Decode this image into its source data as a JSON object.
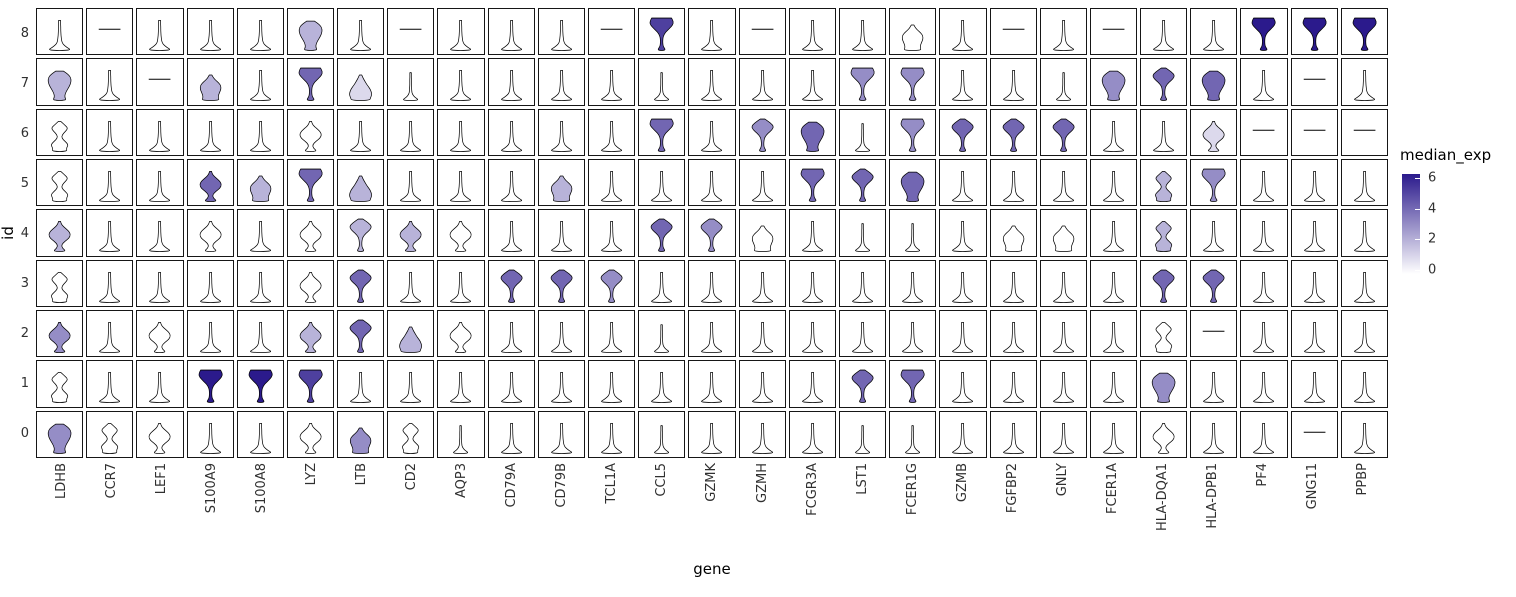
{
  "chart_data": {
    "type": "violin",
    "title": "",
    "xlabel": "gene",
    "ylabel": "id",
    "legend": {
      "title": "median_exp",
      "min": 0,
      "max": 6,
      "ticks": [
        6,
        4,
        2,
        0
      ],
      "low_color": "#FFFFFF",
      "high_color": "#2B1A8C"
    },
    "genes": [
      "LDHB",
      "CCR7",
      "LEF1",
      "S100A9",
      "S100A8",
      "LYZ",
      "LTB",
      "CD2",
      "AQP3",
      "CD79A",
      "CD79B",
      "TCL1A",
      "CCL5",
      "GZMK",
      "GZMH",
      "FCGR3A",
      "LST1",
      "FCER1G",
      "GZMB",
      "FGFBP2",
      "GNLY",
      "FCER1A",
      "HLA-DQA1",
      "HLA-DPB1",
      "PF4",
      "GNG11",
      "PPBP"
    ],
    "ids": [
      8,
      7,
      6,
      5,
      4,
      3,
      2,
      1,
      0
    ],
    "cell_format": "each cell is [violin_shape, median_exp]",
    "rows": [
      {
        "id": 8,
        "cells": [
          [
            "spike",
            0
          ],
          [
            "flat",
            0
          ],
          [
            "spike",
            0
          ],
          [
            "spike",
            0
          ],
          [
            "spike",
            0
          ],
          [
            "blob",
            2
          ],
          [
            "spike",
            0
          ],
          [
            "flat",
            0
          ],
          [
            "spike",
            0
          ],
          [
            "spike",
            0
          ],
          [
            "spike",
            0
          ],
          [
            "flat",
            0
          ],
          [
            "fan",
            5
          ],
          [
            "spike",
            0
          ],
          [
            "flat",
            0
          ],
          [
            "spike",
            0
          ],
          [
            "spike",
            0
          ],
          [
            "urn",
            0
          ],
          [
            "spike",
            0
          ],
          [
            "flat",
            0
          ],
          [
            "spike",
            0
          ],
          [
            "flat",
            0
          ],
          [
            "spike",
            0
          ],
          [
            "spike",
            0
          ],
          [
            "fan",
            6
          ],
          [
            "fan",
            6
          ],
          [
            "fan",
            6
          ]
        ]
      },
      {
        "id": 7,
        "cells": [
          [
            "blob",
            2
          ],
          [
            "spike",
            0
          ],
          [
            "flat",
            0
          ],
          [
            "urn",
            2
          ],
          [
            "spike",
            0
          ],
          [
            "fan",
            4
          ],
          [
            "tri",
            1
          ],
          [
            "thin",
            0
          ],
          [
            "spike",
            0
          ],
          [
            "spike",
            0
          ],
          [
            "spike",
            0
          ],
          [
            "spike",
            0
          ],
          [
            "thin",
            0
          ],
          [
            "spike",
            0
          ],
          [
            "spike",
            0
          ],
          [
            "spike",
            0
          ],
          [
            "fan",
            3
          ],
          [
            "fan",
            3
          ],
          [
            "spike",
            0
          ],
          [
            "spike",
            0
          ],
          [
            "thin",
            0
          ],
          [
            "blob",
            3
          ],
          [
            "spindle",
            4
          ],
          [
            "blob",
            4
          ],
          [
            "spike",
            0
          ],
          [
            "flat",
            0
          ],
          [
            "spike",
            0
          ]
        ]
      },
      {
        "id": 6,
        "cells": [
          [
            "hourglass",
            0
          ],
          [
            "spike",
            0
          ],
          [
            "spike",
            0
          ],
          [
            "spike",
            0
          ],
          [
            "spike",
            0
          ],
          [
            "diamond",
            0
          ],
          [
            "spike",
            0
          ],
          [
            "spike",
            0
          ],
          [
            "spike",
            0
          ],
          [
            "spike",
            0
          ],
          [
            "spike",
            0
          ],
          [
            "spike",
            0
          ],
          [
            "fan",
            4
          ],
          [
            "spike",
            0
          ],
          [
            "spindle",
            3
          ],
          [
            "blob",
            4
          ],
          [
            "thin",
            0
          ],
          [
            "fan",
            3
          ],
          [
            "spindle",
            4
          ],
          [
            "spindle",
            4
          ],
          [
            "spindle",
            4
          ],
          [
            "spike",
            0
          ],
          [
            "spike",
            0
          ],
          [
            "diamond",
            1
          ],
          [
            "flat",
            0
          ],
          [
            "flat",
            0
          ],
          [
            "flat",
            0
          ]
        ]
      },
      {
        "id": 5,
        "cells": [
          [
            "hourglass",
            0
          ],
          [
            "spike",
            0
          ],
          [
            "spike",
            0
          ],
          [
            "diamond",
            4
          ],
          [
            "urn",
            2
          ],
          [
            "fan",
            4
          ],
          [
            "tri",
            2
          ],
          [
            "spike",
            0
          ],
          [
            "spike",
            0
          ],
          [
            "spike",
            0
          ],
          [
            "urn",
            2
          ],
          [
            "spike",
            0
          ],
          [
            "spike",
            0
          ],
          [
            "spike",
            0
          ],
          [
            "spike",
            0
          ],
          [
            "fan",
            4
          ],
          [
            "spindle",
            4
          ],
          [
            "blob",
            4
          ],
          [
            "spike",
            0
          ],
          [
            "spike",
            0
          ],
          [
            "spike",
            0
          ],
          [
            "spike",
            0
          ],
          [
            "hourglass",
            2
          ],
          [
            "fan",
            3
          ],
          [
            "spike",
            0
          ],
          [
            "spike",
            0
          ],
          [
            "spike",
            0
          ]
        ]
      },
      {
        "id": 4,
        "cells": [
          [
            "diamond",
            2
          ],
          [
            "spike",
            0
          ],
          [
            "spike",
            0
          ],
          [
            "diamond",
            0
          ],
          [
            "spike",
            0
          ],
          [
            "diamond",
            0
          ],
          [
            "spindle",
            2
          ],
          [
            "diamond",
            2
          ],
          [
            "diamond",
            0
          ],
          [
            "spike",
            0
          ],
          [
            "spike",
            0
          ],
          [
            "spike",
            0
          ],
          [
            "spindle",
            4
          ],
          [
            "spindle",
            3
          ],
          [
            "urn",
            0
          ],
          [
            "spike",
            0
          ],
          [
            "thin",
            0
          ],
          [
            "thin",
            0
          ],
          [
            "spike",
            0
          ],
          [
            "urn",
            0
          ],
          [
            "urn",
            0
          ],
          [
            "spike",
            0
          ],
          [
            "hourglass",
            2
          ],
          [
            "spike",
            0
          ],
          [
            "spike",
            0
          ],
          [
            "spike",
            0
          ],
          [
            "spike",
            0
          ]
        ]
      },
      {
        "id": 3,
        "cells": [
          [
            "hourglass",
            0
          ],
          [
            "spike",
            0
          ],
          [
            "spike",
            0
          ],
          [
            "spike",
            0
          ],
          [
            "spike",
            0
          ],
          [
            "diamond",
            0
          ],
          [
            "spindle",
            4
          ],
          [
            "spike",
            0
          ],
          [
            "spike",
            0
          ],
          [
            "spindle",
            4
          ],
          [
            "spindle",
            4
          ],
          [
            "spindle",
            3
          ],
          [
            "spike",
            0
          ],
          [
            "spike",
            0
          ],
          [
            "spike",
            0
          ],
          [
            "spike",
            0
          ],
          [
            "spike",
            0
          ],
          [
            "spike",
            0
          ],
          [
            "spike",
            0
          ],
          [
            "spike",
            0
          ],
          [
            "spike",
            0
          ],
          [
            "spike",
            0
          ],
          [
            "spindle",
            4
          ],
          [
            "spindle",
            4
          ],
          [
            "spike",
            0
          ],
          [
            "spike",
            0
          ],
          [
            "spike",
            0
          ]
        ]
      },
      {
        "id": 2,
        "cells": [
          [
            "diamond",
            3
          ],
          [
            "spike",
            0
          ],
          [
            "diamond",
            0
          ],
          [
            "spike",
            0
          ],
          [
            "spike",
            0
          ],
          [
            "diamond",
            2
          ],
          [
            "spindle",
            4
          ],
          [
            "tri",
            2
          ],
          [
            "diamond",
            0
          ],
          [
            "spike",
            0
          ],
          [
            "spike",
            0
          ],
          [
            "spike",
            0
          ],
          [
            "thin",
            0
          ],
          [
            "spike",
            0
          ],
          [
            "spike",
            0
          ],
          [
            "spike",
            0
          ],
          [
            "spike",
            0
          ],
          [
            "spike",
            0
          ],
          [
            "spike",
            0
          ],
          [
            "spike",
            0
          ],
          [
            "spike",
            0
          ],
          [
            "spike",
            0
          ],
          [
            "hourglass",
            0
          ],
          [
            "flat",
            0
          ],
          [
            "spike",
            0
          ],
          [
            "spike",
            0
          ],
          [
            "spike",
            0
          ]
        ]
      },
      {
        "id": 1,
        "cells": [
          [
            "hourglass",
            0
          ],
          [
            "spike",
            0
          ],
          [
            "spike",
            0
          ],
          [
            "fan",
            6
          ],
          [
            "fan",
            6
          ],
          [
            "fan",
            5
          ],
          [
            "spike",
            0
          ],
          [
            "spike",
            0
          ],
          [
            "spike",
            0
          ],
          [
            "spike",
            0
          ],
          [
            "spike",
            0
          ],
          [
            "spike",
            0
          ],
          [
            "spike",
            0
          ],
          [
            "spike",
            0
          ],
          [
            "spike",
            0
          ],
          [
            "spike",
            0
          ],
          [
            "spindle",
            4
          ],
          [
            "fan",
            4
          ],
          [
            "spike",
            0
          ],
          [
            "spike",
            0
          ],
          [
            "spike",
            0
          ],
          [
            "spike",
            0
          ],
          [
            "blob",
            3
          ],
          [
            "spike",
            0
          ],
          [
            "spike",
            0
          ],
          [
            "spike",
            0
          ],
          [
            "spike",
            0
          ]
        ]
      },
      {
        "id": 0,
        "cells": [
          [
            "blob",
            3
          ],
          [
            "hourglass",
            0
          ],
          [
            "diamond",
            0
          ],
          [
            "spike",
            0
          ],
          [
            "spike",
            0
          ],
          [
            "diamond",
            0
          ],
          [
            "urn",
            3
          ],
          [
            "hourglass",
            0
          ],
          [
            "thin",
            0
          ],
          [
            "spike",
            0
          ],
          [
            "spike",
            0
          ],
          [
            "spike",
            0
          ],
          [
            "thin",
            0
          ],
          [
            "spike",
            0
          ],
          [
            "spike",
            0
          ],
          [
            "spike",
            0
          ],
          [
            "thin",
            0
          ],
          [
            "thin",
            0
          ],
          [
            "spike",
            0
          ],
          [
            "spike",
            0
          ],
          [
            "spike",
            0
          ],
          [
            "spike",
            0
          ],
          [
            "diamond",
            0
          ],
          [
            "spike",
            0
          ],
          [
            "spike",
            0
          ],
          [
            "flat",
            0
          ],
          [
            "spike",
            0
          ]
        ]
      }
    ]
  }
}
